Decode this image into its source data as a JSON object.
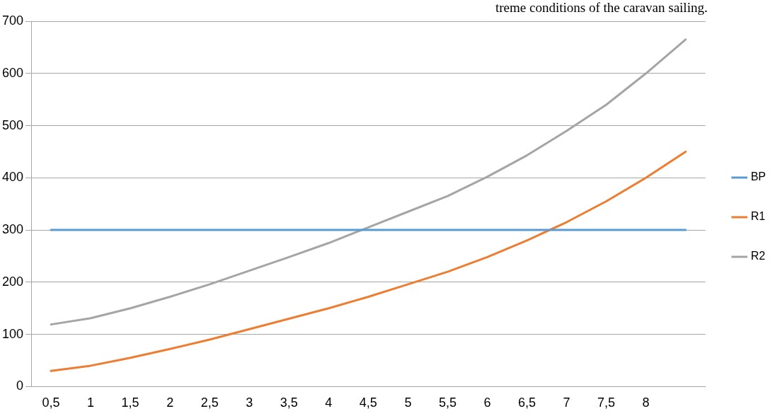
{
  "chart_data": {
    "type": "line",
    "categories": [
      "0,5",
      "1",
      "1,5",
      "2",
      "2,5",
      "3",
      "3,5",
      "4",
      "4,5",
      "5",
      "5,5",
      "6",
      "6,5",
      "7",
      "7,5",
      "8",
      null
    ],
    "series": [
      {
        "name": "BP",
        "color": "#5b9bd5",
        "values": [
          300,
          300,
          300,
          300,
          300,
          300,
          300,
          300,
          300,
          300,
          300,
          300,
          300,
          300,
          300,
          300,
          300
        ]
      },
      {
        "name": "R1",
        "color": "#ed7d31",
        "values": [
          30,
          40,
          55,
          72,
          90,
          110,
          130,
          150,
          172,
          196,
          220,
          248,
          280,
          315,
          355,
          400,
          450
        ]
      },
      {
        "name": "R2",
        "color": "#a5a5a5",
        "values": [
          119,
          131,
          150,
          172,
          196,
          222,
          248,
          275,
          305,
          335,
          365,
          402,
          443,
          490,
          540,
          600,
          665
        ]
      }
    ],
    "ylim": [
      0,
      700
    ],
    "yticks": [
      0,
      100,
      200,
      300,
      400,
      500,
      600,
      700
    ],
    "grid": "y",
    "legend": "right",
    "marker": "none",
    "line_style": "solid",
    "annotations": [
      "treme conditions of the caravan sailing."
    ]
  }
}
